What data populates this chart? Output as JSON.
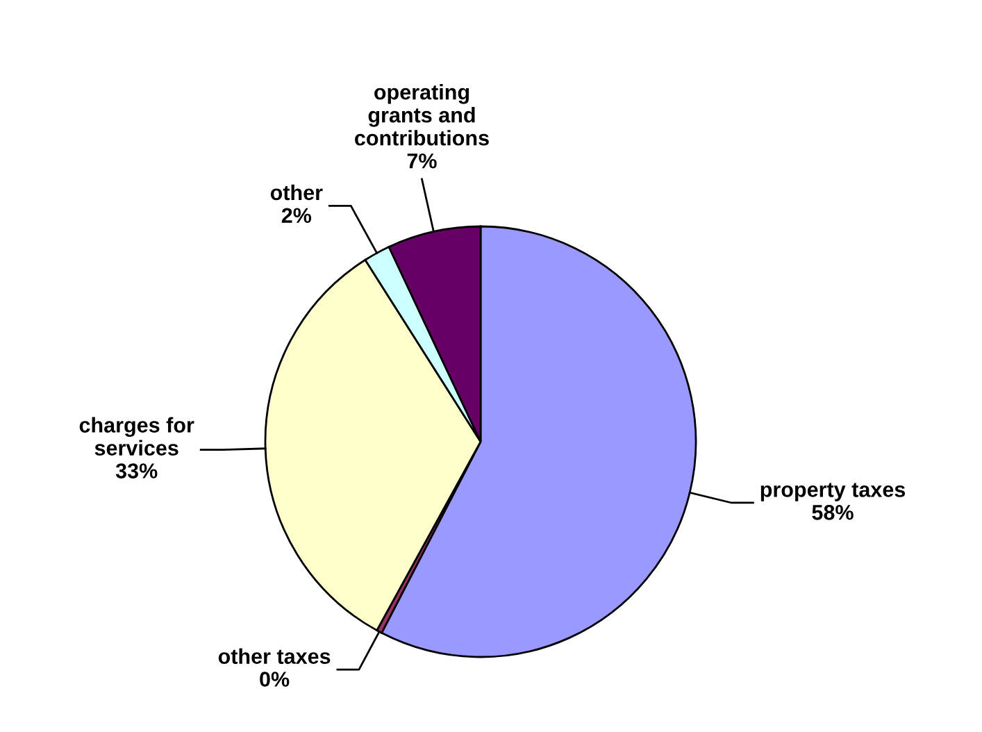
{
  "chart_data": {
    "type": "pie",
    "categories": [
      "property taxes",
      "other taxes",
      "charges for services",
      "other",
      "operating grants and contributions"
    ],
    "values": [
      57.6,
      0.4,
      33,
      2,
      7
    ],
    "value_labels": [
      "58%",
      "0%",
      "33%",
      "2%",
      "7%"
    ],
    "colors": [
      "#9999ff",
      "#993366",
      "#ffffcc",
      "#ccffff",
      "#660066"
    ]
  }
}
